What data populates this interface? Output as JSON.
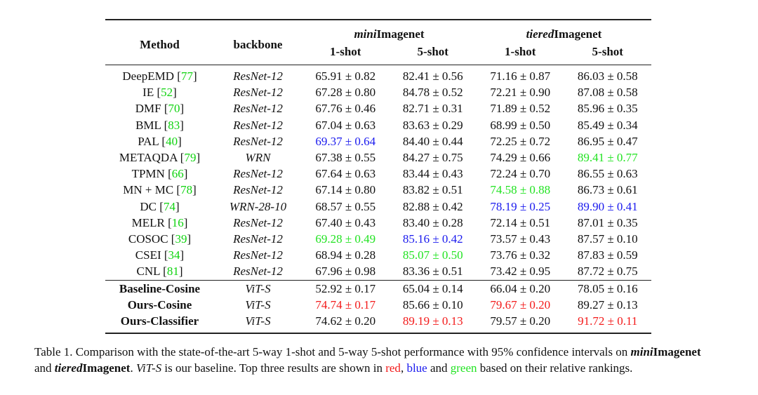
{
  "table": {
    "headers": {
      "method": "Method",
      "backbone": "backbone",
      "mini_prefix": "mini",
      "mini_suffix": "Imagenet",
      "tiered_prefix": "tiered",
      "tiered_suffix": "Imagenet",
      "one_shot": "1-shot",
      "five_shot": "5-shot"
    },
    "rows": [
      {
        "method": "DeepEMD",
        "cite": "77",
        "backbone": "ResNet-12",
        "values": [
          "65.91 ± 0.82",
          "82.41 ± 0.56",
          "71.16 ± 0.87",
          "86.03 ± 0.58"
        ],
        "colors": [
          "",
          "",
          "",
          ""
        ]
      },
      {
        "method": "IE",
        "cite": "52",
        "backbone": "ResNet-12",
        "values": [
          "67.28 ± 0.80",
          "84.78 ± 0.52",
          "72.21 ± 0.90",
          "87.08 ± 0.58"
        ],
        "colors": [
          "",
          "",
          "",
          ""
        ]
      },
      {
        "method": "DMF",
        "cite": "70",
        "backbone": "ResNet-12",
        "values": [
          "67.76 ± 0.46",
          "82.71 ± 0.31",
          "71.89 ± 0.52",
          "85.96 ± 0.35"
        ],
        "colors": [
          "",
          "",
          "",
          ""
        ]
      },
      {
        "method": "BML",
        "cite": "83",
        "backbone": "ResNet-12",
        "values": [
          "67.04 ± 0.63",
          "83.63 ± 0.29",
          "68.99 ± 0.50",
          "85.49 ± 0.34"
        ],
        "colors": [
          "",
          "",
          "",
          ""
        ]
      },
      {
        "method": "PAL",
        "cite": "40",
        "backbone": "ResNet-12",
        "values": [
          "69.37 ± 0.64",
          "84.40 ± 0.44",
          "72.25 ± 0.72",
          "86.95 ± 0.47"
        ],
        "colors": [
          "blue",
          "",
          "",
          ""
        ]
      },
      {
        "method": "METAQDA",
        "cite": "79",
        "backbone": "WRN",
        "values": [
          "67.38 ± 0.55",
          "84.27 ± 0.75",
          "74.29 ± 0.66",
          "89.41 ± 0.77"
        ],
        "colors": [
          "",
          "",
          "",
          "green"
        ]
      },
      {
        "method": "TPMN",
        "cite": "66",
        "backbone": "ResNet-12",
        "values": [
          "67.64 ± 0.63",
          "83.44 ± 0.43",
          "72.24 ± 0.70",
          "86.55 ± 0.63"
        ],
        "colors": [
          "",
          "",
          "",
          ""
        ]
      },
      {
        "method": "MN + MC",
        "cite": "78",
        "backbone": "ResNet-12",
        "values": [
          "67.14 ± 0.80",
          "83.82 ± 0.51",
          "74.58 ± 0.88",
          "86.73 ± 0.61"
        ],
        "colors": [
          "",
          "",
          "green",
          ""
        ]
      },
      {
        "method": "DC",
        "cite": "74",
        "backbone": "WRN-28-10",
        "values": [
          "68.57 ± 0.55",
          "82.88 ± 0.42",
          "78.19 ± 0.25",
          "89.90 ± 0.41"
        ],
        "colors": [
          "",
          "",
          "blue",
          "blue"
        ]
      },
      {
        "method": "MELR",
        "cite": "16",
        "backbone": "ResNet-12",
        "values": [
          "67.40 ± 0.43",
          "83.40 ± 0.28",
          "72.14 ± 0.51",
          "87.01 ± 0.35"
        ],
        "colors": [
          "",
          "",
          "",
          ""
        ]
      },
      {
        "method": "COSOC",
        "cite": "39",
        "backbone": "ResNet-12",
        "values": [
          "69.28 ± 0.49",
          "85.16 ± 0.42",
          "73.57 ± 0.43",
          "87.57 ± 0.10"
        ],
        "colors": [
          "green",
          "blue",
          "",
          ""
        ]
      },
      {
        "method": "CSEI",
        "cite": "34",
        "backbone": "ResNet-12",
        "values": [
          "68.94 ± 0.28",
          "85.07 ± 0.50",
          "73.76 ± 0.32",
          "87.83 ± 0.59"
        ],
        "colors": [
          "",
          "green",
          "",
          ""
        ]
      },
      {
        "method": "CNL",
        "cite": "81",
        "backbone": "ResNet-12",
        "values": [
          "67.96 ± 0.98",
          "83.36 ± 0.51",
          "73.42 ± 0.95",
          "87.72 ± 0.75"
        ],
        "colors": [
          "",
          "",
          "",
          ""
        ]
      }
    ],
    "ours_rows": [
      {
        "method": "Baseline-Cosine",
        "backbone": "ViT-S",
        "values": [
          "52.92 ± 0.17",
          "65.04 ± 0.14",
          "66.04 ± 0.20",
          "78.05 ± 0.16"
        ],
        "colors": [
          "",
          "",
          "",
          ""
        ]
      },
      {
        "method": "Ours-Cosine",
        "backbone": "ViT-S",
        "values": [
          "74.74 ± 0.17",
          "85.66 ± 0.10",
          "79.67 ± 0.20",
          "89.27 ± 0.13"
        ],
        "colors": [
          "red",
          "",
          "red",
          ""
        ]
      },
      {
        "method": "Ours-Classifier",
        "backbone": "ViT-S",
        "values": [
          "74.62 ± 0.20",
          "89.19 ± 0.13",
          "79.57 ± 0.20",
          "91.72 ± 0.11"
        ],
        "colors": [
          "",
          "red",
          "",
          "red"
        ]
      }
    ]
  },
  "caption": {
    "p1": "Table 1. Comparison with the state-of-the-art 5-way 1-shot and 5-way 5-shot performance with 95% confidence intervals on ",
    "mini_prefix": "mini",
    "mini_suffix": "Imagenet",
    "p2": "and ",
    "tiered_prefix": "tiered",
    "tiered_suffix": "Imagenet",
    "p3": ". ",
    "vit": "ViT-S",
    "p4": " is our baseline. Top three results are shown in ",
    "red_word": "red",
    "sep1": ", ",
    "blue_word": "blue",
    "and_word": " and ",
    "green_word": "green",
    "p5": " based on their relative rankings."
  },
  "colors": {
    "red": "#f31a1a",
    "blue": "#1a1aee",
    "green": "#22e322",
    "cite_green": "#0fd30f"
  }
}
